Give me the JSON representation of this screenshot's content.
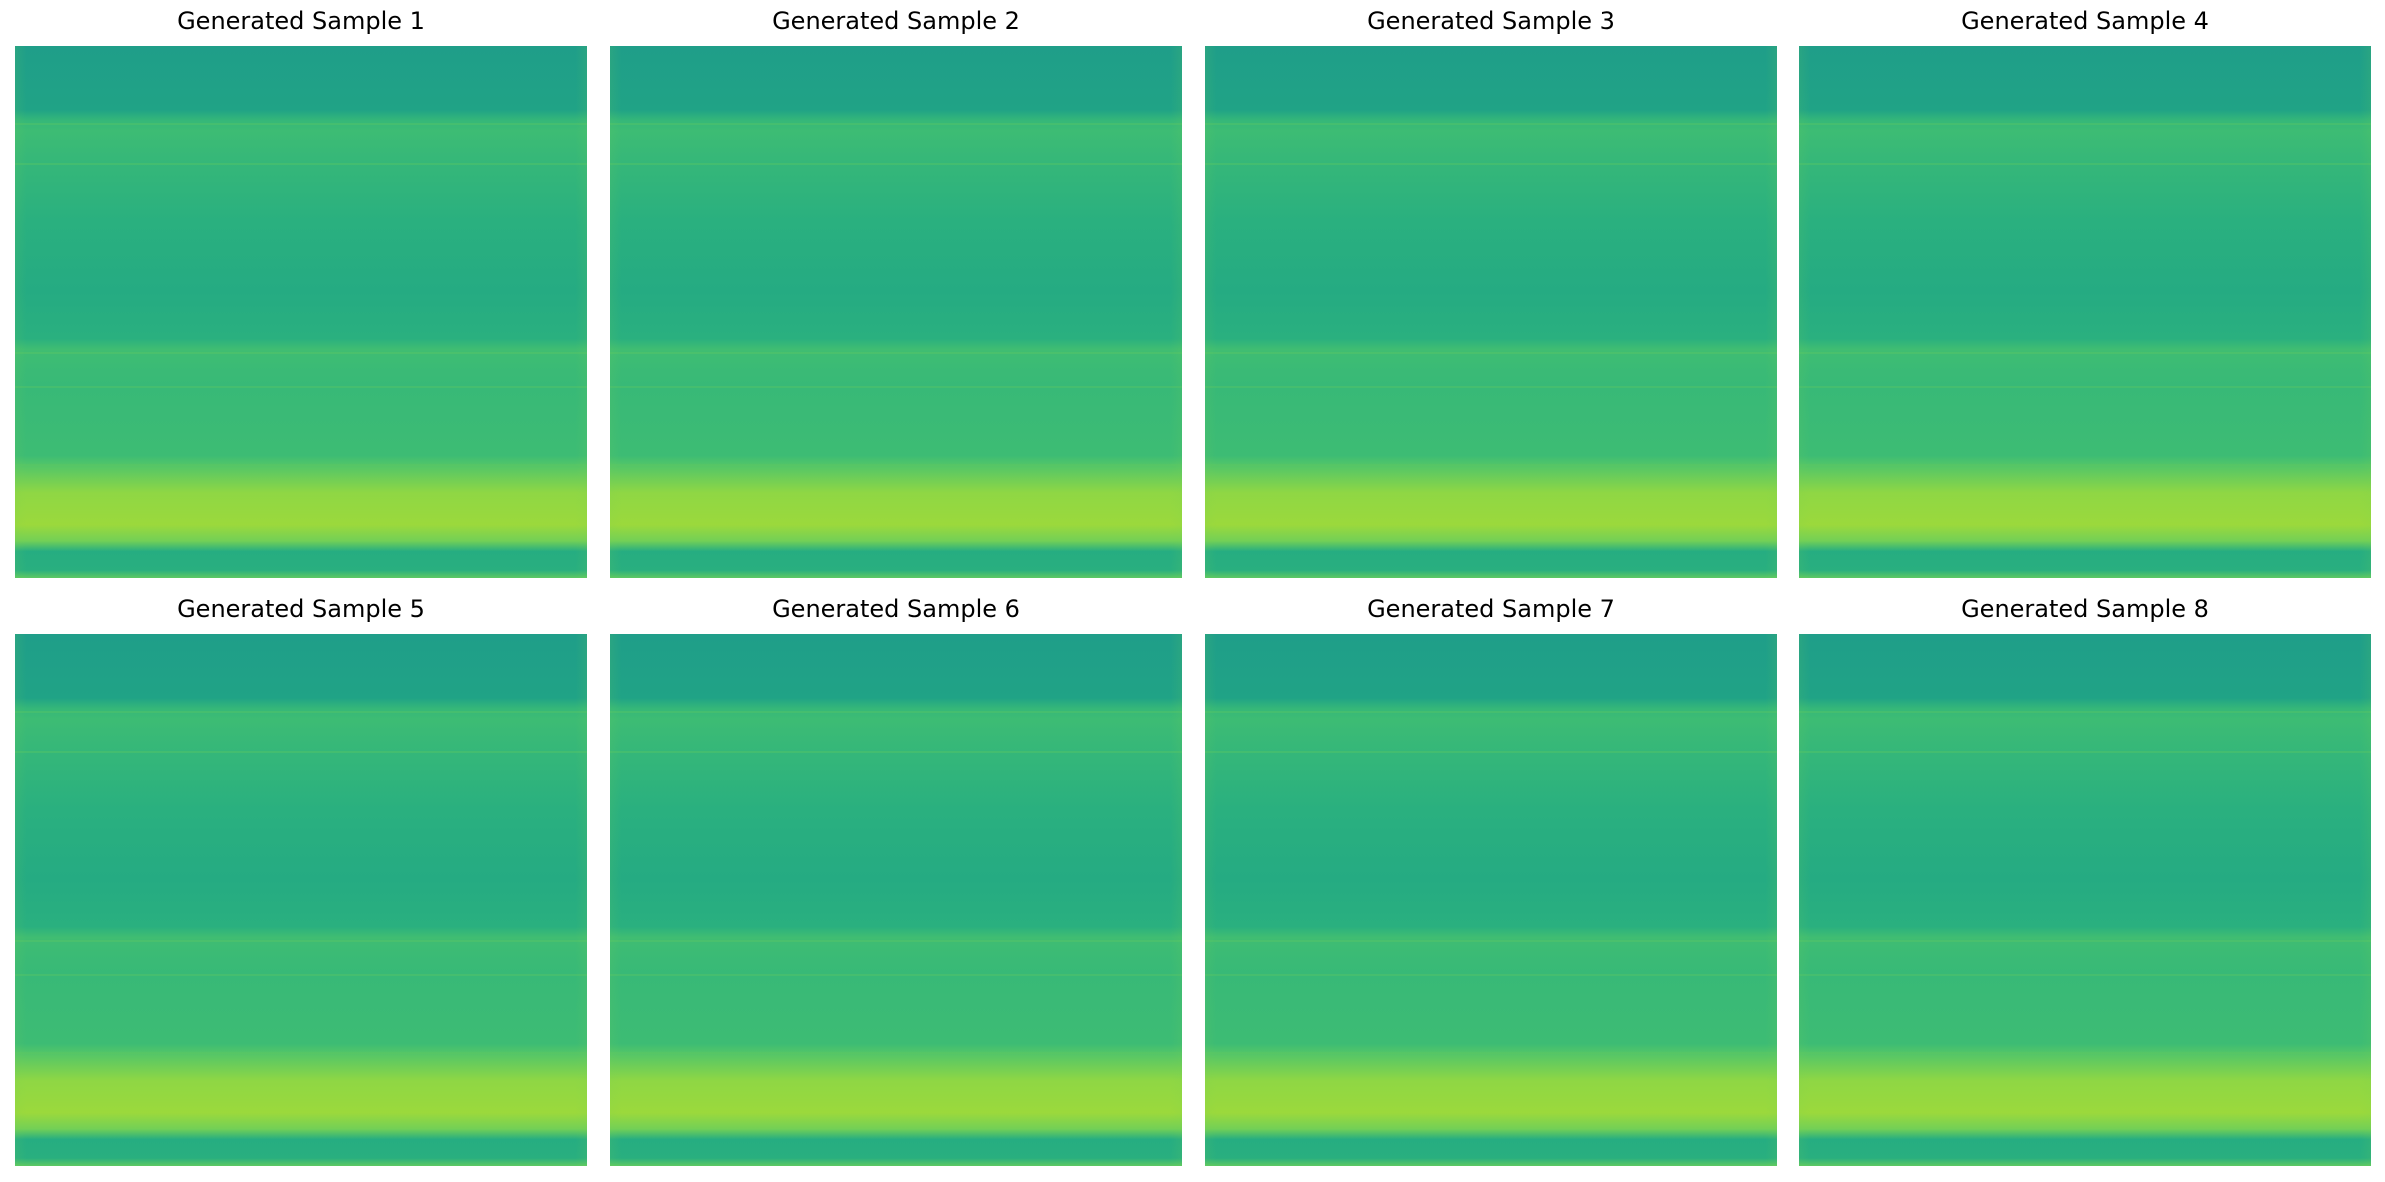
{
  "figure": {
    "colormap": "viridis",
    "panels": [
      {
        "title": "Generated Sample 1"
      },
      {
        "title": "Generated Sample 2"
      },
      {
        "title": "Generated Sample 3"
      },
      {
        "title": "Generated Sample 4"
      },
      {
        "title": "Generated Sample 5"
      },
      {
        "title": "Generated Sample 6"
      },
      {
        "title": "Generated Sample 7"
      },
      {
        "title": "Generated Sample 8"
      }
    ]
  }
}
